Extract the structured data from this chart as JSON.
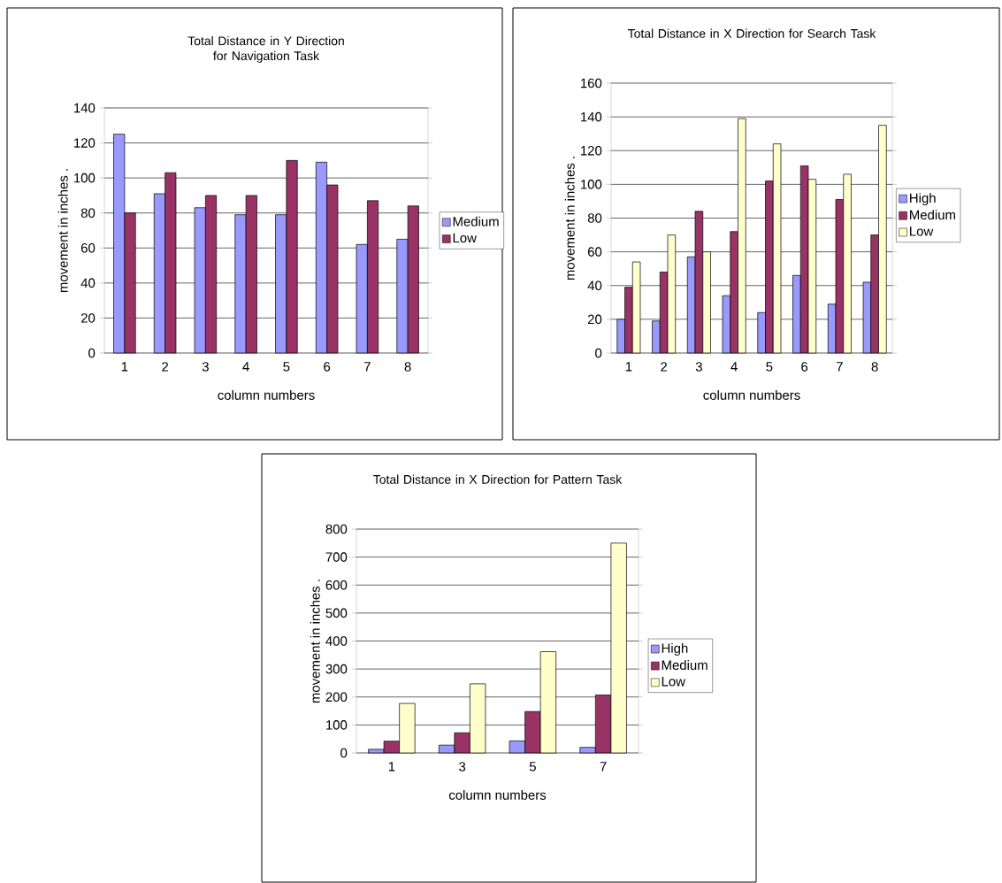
{
  "chart_data": [
    {
      "type": "bar",
      "title": "Total Distance in Y Direction for Navigation Task",
      "xlabel": "column numbers",
      "ylabel": "movement in inches .",
      "categories": [
        "1",
        "2",
        "3",
        "4",
        "5",
        "6",
        "7",
        "8"
      ],
      "series": [
        {
          "name": "Medium",
          "color": "#9999ff",
          "values": [
            125,
            91,
            83,
            79,
            79,
            109,
            62,
            65
          ]
        },
        {
          "name": "Low",
          "color": "#993366",
          "values": [
            80,
            103,
            90,
            90,
            110,
            96,
            87,
            84
          ]
        }
      ],
      "ylim": [
        0,
        140
      ],
      "yticks": [
        0,
        20,
        40,
        60,
        80,
        100,
        120,
        140
      ],
      "grid": "y",
      "legend": "right"
    },
    {
      "type": "bar",
      "title": "Total Distance in X Direction for Search Task",
      "xlabel": "column numbers",
      "ylabel": "movement in inches .",
      "categories": [
        "1",
        "2",
        "3",
        "4",
        "5",
        "6",
        "7",
        "8"
      ],
      "series": [
        {
          "name": "High",
          "color": "#9999ff",
          "values": [
            20,
            19,
            57,
            34,
            24,
            46,
            29,
            42
          ]
        },
        {
          "name": "Medium",
          "color": "#993366",
          "values": [
            39,
            48,
            84,
            72,
            102,
            111,
            91,
            70
          ]
        },
        {
          "name": "Low",
          "color": "#ffffcc",
          "values": [
            54,
            70,
            60,
            139,
            124,
            103,
            106,
            135
          ]
        }
      ],
      "ylim": [
        0,
        160
      ],
      "yticks": [
        0,
        20,
        40,
        60,
        80,
        100,
        120,
        140,
        160
      ],
      "grid": "y",
      "legend": "right"
    },
    {
      "type": "bar",
      "title": "Total Distance in X Direction for Pattern Task",
      "xlabel": "column numbers",
      "ylabel": "movement in inches .",
      "categories": [
        "1",
        "3",
        "5",
        "7"
      ],
      "series": [
        {
          "name": "High",
          "color": "#9999ff",
          "values": [
            13,
            28,
            43,
            20
          ]
        },
        {
          "name": "Medium",
          "color": "#993366",
          "values": [
            42,
            72,
            148,
            207
          ]
        },
        {
          "name": "Low",
          "color": "#ffffcc",
          "values": [
            177,
            247,
            362,
            750
          ]
        }
      ],
      "ylim": [
        0,
        800
      ],
      "yticks": [
        0,
        100,
        200,
        300,
        400,
        500,
        600,
        700,
        800
      ],
      "grid": "y",
      "legend": "right"
    }
  ]
}
